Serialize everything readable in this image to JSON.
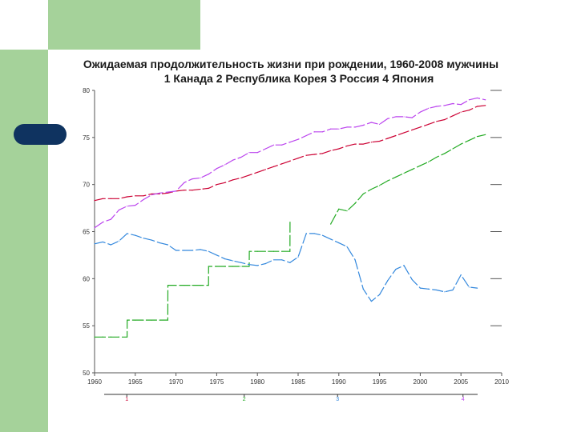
{
  "title": "Ожидаемая продолжительность жизни при рождении, 1960-2008 мужчины",
  "subtitle": "1 Канада   2 Республика Корея   3 Россия   4 Япония",
  "colors": {
    "canada": "#cc0033",
    "korea": "#22aa22",
    "russia": "#3388dd",
    "japan": "#bb44ee",
    "axis": "#555555",
    "grid": "#333333",
    "tick_text": "#333333"
  },
  "chart_data": {
    "type": "line",
    "title": "Ожидаемая продолжительность жизни при рождении, 1960-2008 мужчины",
    "xlabel": "",
    "ylabel": "",
    "xlim": [
      1960,
      2010
    ],
    "ylim": [
      50,
      80
    ],
    "x_ticks": [
      1960,
      1965,
      1970,
      1975,
      1980,
      1985,
      1990,
      1995,
      2000,
      2005,
      2010
    ],
    "y_ticks": [
      50,
      55,
      60,
      65,
      70,
      75,
      80
    ],
    "x_tick_labels": [
      "1960",
      "1965",
      "1970",
      "1975",
      "1980",
      "1985",
      "1990",
      "1995",
      "2000",
      "2005",
      "2010"
    ],
    "y_tick_labels": [
      "50",
      "55",
      "60",
      "65",
      "70",
      "75",
      "80"
    ],
    "grid": false,
    "legend_position": "bottom",
    "legend_labels": [
      "1",
      "2",
      "3",
      "4"
    ],
    "series": [
      {
        "name": "1",
        "color": "#cc0033",
        "x": [
          1960,
          1961,
          1962,
          1963,
          1964,
          1965,
          1966,
          1967,
          1968,
          1969,
          1970,
          1971,
          1972,
          1973,
          1974,
          1975,
          1976,
          1977,
          1978,
          1979,
          1980,
          1981,
          1982,
          1983,
          1984,
          1985,
          1986,
          1987,
          1988,
          1989,
          1990,
          1991,
          1992,
          1993,
          1994,
          1995,
          1996,
          1997,
          1998,
          1999,
          2000,
          2001,
          2002,
          2003,
          2004,
          2005,
          2006,
          2007,
          2008
        ],
        "y": [
          68.3,
          68.5,
          68.5,
          68.5,
          68.7,
          68.8,
          68.8,
          69.0,
          69.0,
          69.1,
          69.3,
          69.4,
          69.4,
          69.5,
          69.6,
          70.0,
          70.2,
          70.5,
          70.7,
          71.0,
          71.3,
          71.6,
          71.9,
          72.2,
          72.5,
          72.8,
          73.1,
          73.2,
          73.3,
          73.6,
          73.8,
          74.1,
          74.3,
          74.3,
          74.5,
          74.6,
          74.9,
          75.2,
          75.5,
          75.8,
          76.1,
          76.4,
          76.7,
          76.9,
          77.3,
          77.7,
          77.9,
          78.3,
          78.4
        ]
      },
      {
        "name": "2",
        "color": "#22aa22",
        "x": [
          1960,
          1961,
          1962,
          1963,
          1964,
          1964.01,
          1965,
          1966,
          1967,
          1968,
          1969,
          1969.01,
          1970,
          1971,
          1972,
          1973,
          1974,
          1974.01,
          1975,
          1976,
          1977,
          1978,
          1979,
          1979.01,
          1980,
          1981,
          1982,
          1983,
          1984,
          1984.01,
          1985,
          1986,
          1987,
          1988,
          1989,
          1990,
          1991,
          1992,
          1993,
          1994,
          1995,
          1996,
          1997,
          1998,
          1999,
          2000,
          2001,
          2002,
          2003,
          2004,
          2005,
          2006,
          2007,
          2008
        ],
        "y": [
          53.8,
          53.8,
          53.8,
          53.8,
          53.8,
          55.6,
          55.6,
          55.6,
          55.6,
          55.6,
          55.6,
          59.3,
          59.3,
          59.3,
          59.3,
          59.3,
          59.3,
          61.3,
          61.3,
          61.3,
          61.3,
          61.3,
          61.3,
          62.9,
          62.9,
          62.9,
          62.9,
          62.9,
          62.9,
          66.0,
          null,
          null,
          null,
          null,
          65.8,
          67.4,
          67.2,
          68.0,
          69.0,
          69.5,
          69.9,
          70.4,
          70.8,
          71.2,
          71.6,
          72.0,
          72.4,
          72.9,
          73.3,
          73.8,
          74.3,
          74.7,
          75.1,
          75.3
        ]
      },
      {
        "name": "3",
        "color": "#3388dd",
        "x": [
          1960,
          1961,
          1962,
          1963,
          1964,
          1965,
          1966,
          1967,
          1968,
          1969,
          1970,
          1971,
          1972,
          1973,
          1974,
          1975,
          1976,
          1977,
          1978,
          1979,
          1980,
          1981,
          1982,
          1983,
          1984,
          1985,
          1986,
          1987,
          1988,
          1989,
          1990,
          1991,
          1992,
          1993,
          1994,
          1995,
          1996,
          1997,
          1998,
          1999,
          2000,
          2001,
          2002,
          2003,
          2004,
          2005,
          2006,
          2007
        ],
        "y": [
          63.7,
          63.9,
          63.6,
          64.0,
          64.8,
          64.6,
          64.3,
          64.1,
          63.8,
          63.6,
          63.0,
          63.0,
          63.0,
          63.1,
          62.9,
          62.5,
          62.1,
          61.9,
          61.7,
          61.5,
          61.4,
          61.6,
          62.0,
          62.0,
          61.7,
          62.3,
          64.8,
          64.8,
          64.6,
          64.2,
          63.8,
          63.4,
          62.0,
          58.9,
          57.6,
          58.3,
          59.8,
          61.0,
          61.4,
          59.9,
          59.0,
          58.9,
          58.8,
          58.6,
          58.8,
          60.4,
          59.1,
          59.0
        ]
      },
      {
        "name": "4",
        "color": "#bb44ee",
        "x": [
          1960,
          1961,
          1962,
          1963,
          1964,
          1965,
          1966,
          1967,
          1968,
          1969,
          1970,
          1971,
          1972,
          1973,
          1974,
          1975,
          1976,
          1977,
          1978,
          1979,
          1980,
          1981,
          1982,
          1983,
          1984,
          1985,
          1986,
          1987,
          1988,
          1989,
          1990,
          1991,
          1992,
          1993,
          1994,
          1995,
          1996,
          1997,
          1998,
          1999,
          2000,
          2001,
          2002,
          2003,
          2004,
          2005,
          2006,
          2007,
          2008
        ],
        "y": [
          65.4,
          66.0,
          66.3,
          67.3,
          67.7,
          67.8,
          68.4,
          68.9,
          69.1,
          69.2,
          69.3,
          70.2,
          70.6,
          70.7,
          71.1,
          71.7,
          72.1,
          72.6,
          72.9,
          73.4,
          73.4,
          73.8,
          74.2,
          74.2,
          74.5,
          74.8,
          75.2,
          75.6,
          75.6,
          75.9,
          75.9,
          76.1,
          76.1,
          76.3,
          76.6,
          76.4,
          77.0,
          77.2,
          77.2,
          77.1,
          77.7,
          78.1,
          78.3,
          78.4,
          78.6,
          78.5,
          79.0,
          79.2,
          79.0
        ]
      }
    ]
  }
}
